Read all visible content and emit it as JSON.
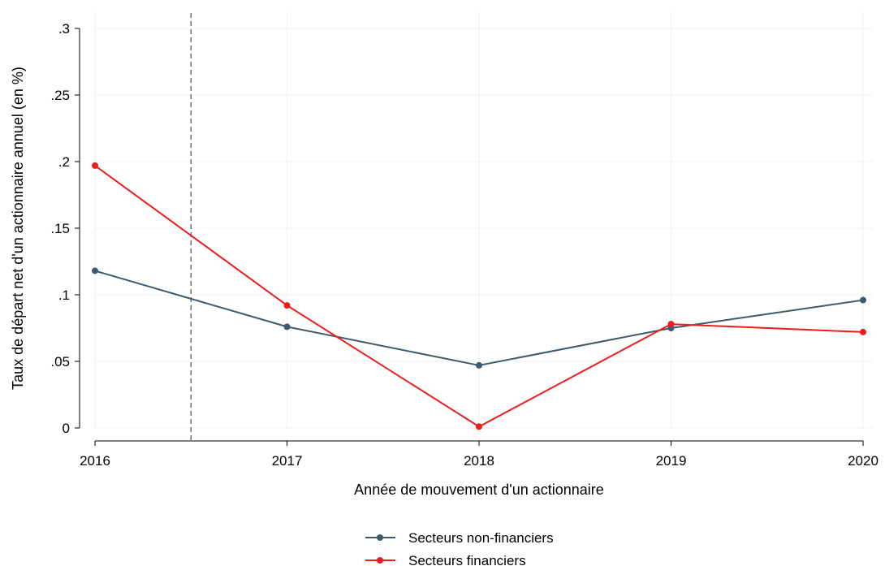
{
  "chart_data": {
    "type": "line",
    "x": [
      2016,
      2017,
      2018,
      2019,
      2020
    ],
    "xlabel": "Année de mouvement d'un actionnaire",
    "ylabel": "Taux de départ net d'un actionnaire annuel (en %)",
    "xlim": [
      2016,
      2020
    ],
    "ylim": [
      0,
      0.3
    ],
    "xticks": [
      "2016",
      "2017",
      "2018",
      "2019",
      "2020"
    ],
    "yticks": [
      {
        "value": 0,
        "label": "0"
      },
      {
        "value": 0.05,
        "label": ".05"
      },
      {
        "value": 0.1,
        "label": ".1"
      },
      {
        "value": 0.15,
        "label": ".15"
      },
      {
        "value": 0.2,
        "label": ".2"
      },
      {
        "value": 0.25,
        "label": ".25"
      },
      {
        "value": 0.3,
        "label": ".3"
      }
    ],
    "grid": true,
    "reference_line_x": 2016.5,
    "legend_position": "bottom",
    "series": [
      {
        "name": "Secteurs non-financiers",
        "color": "#3d5a6f",
        "values": [
          0.118,
          0.076,
          0.047,
          0.075,
          0.096
        ]
      },
      {
        "name": "Secteurs financiers",
        "color": "#ee1c1c",
        "values": [
          0.197,
          0.092,
          0.001,
          0.078,
          0.072
        ]
      }
    ]
  }
}
